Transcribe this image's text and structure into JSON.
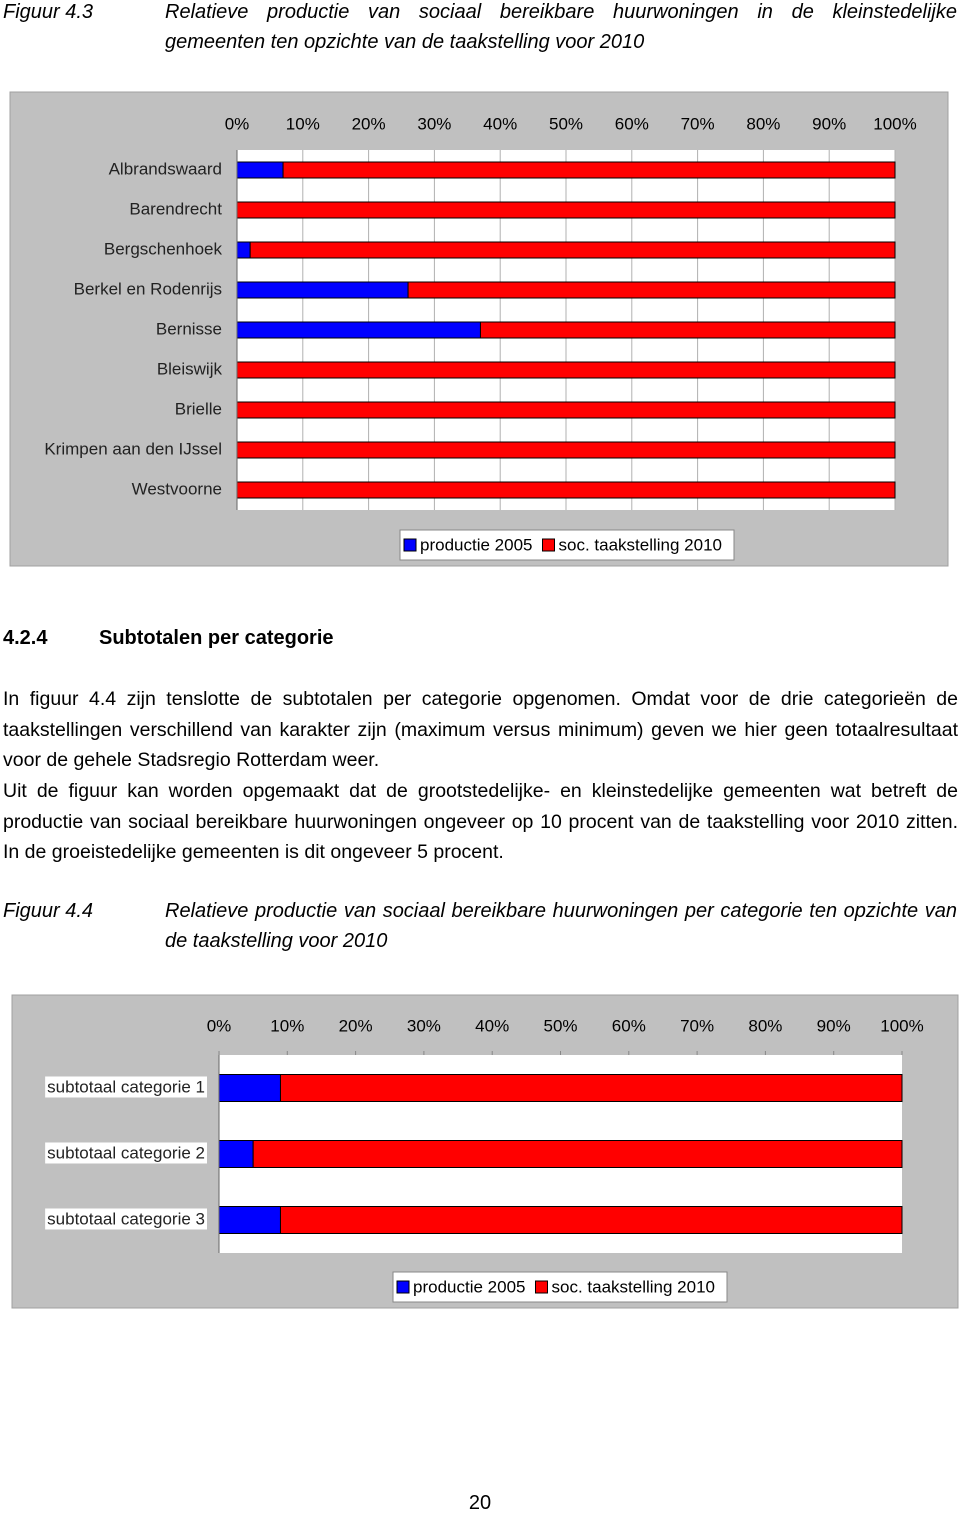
{
  "figures": [
    {
      "label": "Figuur 4.3",
      "caption": "Relatieve productie van sociaal bereikbare huurwoningen in de kleinstedelijke gemeenten ten opzichte van de taakstelling voor 2010"
    },
    {
      "label": "Figuur 4.4",
      "caption": "Relatieve productie van sociaal bereikbare huurwoningen per categorie ten opzichte van de taakstelling voor 2010"
    }
  ],
  "section": {
    "number": "4.2.4",
    "title": "Subtotalen per categorie"
  },
  "paragraphs": [
    "In figuur 4.4 zijn tenslotte de subtotalen per categorie opgenomen. Omdat voor de drie categorieën de taakstellingen verschillend van karakter zijn (maximum versus minimum) geven we hier geen totaalresultaat voor de gehele Stadsregio Rotterdam weer.",
    "Uit de figuur kan worden opgemaakt dat de grootstedelijke- en kleinstedelijke gemeenten wat betreft de productie van sociaal bereikbare huurwoningen ongeveer op 10 procent van de taakstelling voor 2010 zitten. In de groeistedelijke gemeenten is dit ongeveer 5 procent."
  ],
  "page_number": "20",
  "chart_data": [
    {
      "type": "bar",
      "orientation": "horizontal",
      "stacked": true,
      "grid": true,
      "legend": "bottom",
      "categories": [
        "Albrandswaard",
        "Barendrecht",
        "Bergschenhoek",
        "Berkel en Rodenrijs",
        "Bernisse",
        "Bleiswijk",
        "Brielle",
        "Krimpen aan den IJssel",
        "Westvoorne"
      ],
      "series": [
        {
          "name": "productie 2005",
          "color": "#0000ff",
          "values": [
            7,
            0,
            2,
            26,
            37,
            0,
            0,
            0,
            0
          ]
        },
        {
          "name": "soc. taakstelling 2010",
          "color": "#ff0000",
          "values": [
            93,
            100,
            98,
            74,
            63,
            100,
            100,
            100,
            100
          ]
        }
      ],
      "xlim": [
        0,
        100
      ],
      "xticks": [
        {
          "value": 0,
          "label": "0%"
        },
        {
          "value": 10,
          "label": "10%"
        },
        {
          "value": 20,
          "label": "20%"
        },
        {
          "value": 30,
          "label": "30%"
        },
        {
          "value": 40,
          "label": "40%"
        },
        {
          "value": 50,
          "label": "50%"
        },
        {
          "value": 60,
          "label": "60%"
        },
        {
          "value": 70,
          "label": "70%"
        },
        {
          "value": 80,
          "label": "80%"
        },
        {
          "value": 90,
          "label": "90%"
        },
        {
          "value": 100,
          "label": "100%"
        }
      ]
    },
    {
      "type": "bar",
      "orientation": "horizontal",
      "stacked": true,
      "grid": false,
      "legend": "bottom",
      "categories": [
        "subtotaal categorie 1",
        "subtotaal categorie 2",
        "subtotaal categorie 3"
      ],
      "series": [
        {
          "name": "productie 2005",
          "color": "#0000ff",
          "values": [
            9,
            5,
            9
          ]
        },
        {
          "name": "soc. taakstelling 2010",
          "color": "#ff0000",
          "values": [
            91,
            95,
            91
          ]
        }
      ],
      "xlim": [
        0,
        100
      ],
      "xticks": [
        {
          "value": 0,
          "label": "0%"
        },
        {
          "value": 10,
          "label": "10%"
        },
        {
          "value": 20,
          "label": "20%"
        },
        {
          "value": 30,
          "label": "30%"
        },
        {
          "value": 40,
          "label": "40%"
        },
        {
          "value": 50,
          "label": "50%"
        },
        {
          "value": 60,
          "label": "60%"
        },
        {
          "value": 70,
          "label": "70%"
        },
        {
          "value": 80,
          "label": "80%"
        },
        {
          "value": 90,
          "label": "90%"
        },
        {
          "value": 100,
          "label": "100%"
        }
      ]
    }
  ]
}
